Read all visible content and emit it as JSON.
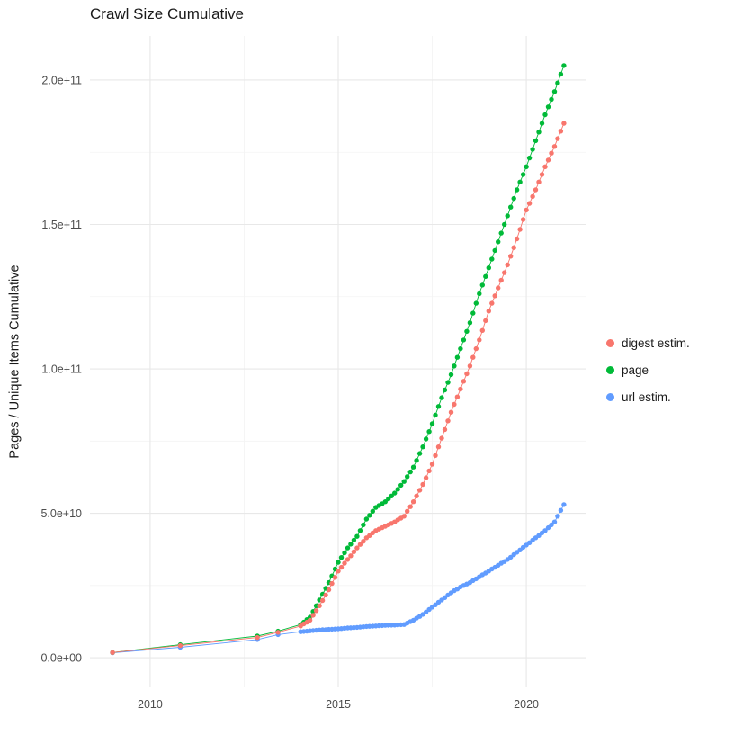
{
  "chart_data": {
    "type": "scatter",
    "title": "Crawl Size Cumulative",
    "xlabel": "",
    "ylabel": "Pages / Unique Items Cumulative",
    "grid": true,
    "legend_position": "right",
    "unit": 1000000000,
    "unit_note": "all series values are in billions (1e9) of pages/items",
    "xlim": [
      2009,
      2021
    ],
    "ylim": [
      0,
      205
    ],
    "x_ticks": {
      "values": [
        2010,
        2015,
        2020
      ],
      "labels": [
        "2010",
        "2015",
        "2020"
      ]
    },
    "x_minor": [
      2012.5,
      2017.5
    ],
    "y_ticks": {
      "values": [
        0,
        50,
        100,
        150,
        200
      ],
      "labels": [
        "0.0e+00",
        "5.0e+10",
        "1.0e+11",
        "1.5e+11",
        "2.0e+11"
      ]
    },
    "y_minor": [
      25,
      75,
      125,
      175
    ],
    "series": [
      {
        "name": "digest estim.",
        "color": "#F8766D",
        "early_points": [
          [
            2009.0,
            1.8
          ],
          [
            2010.8,
            4.2
          ],
          [
            2012.85,
            7.0
          ],
          [
            2013.4,
            8.8
          ]
        ],
        "monthly_start": 2014.0,
        "monthly_step_years": 0.0833333,
        "monthly_values": [
          11,
          11.7,
          12.3,
          13,
          14.7,
          16.3,
          18,
          19.8,
          21.7,
          23.5,
          25.7,
          27.8,
          30,
          31.3,
          32.7,
          34,
          35.3,
          36.7,
          38,
          39.2,
          40.3,
          41.5,
          42.3,
          43.2,
          44,
          44.5,
          45,
          45.5,
          46,
          46.5,
          47,
          47.7,
          48.3,
          49,
          50.7,
          52.3,
          54,
          56,
          58,
          60,
          62.3,
          64.7,
          67,
          70,
          73,
          76,
          79,
          82,
          85,
          87.7,
          90.3,
          93,
          95.7,
          98.3,
          101,
          104,
          107,
          110,
          113.3,
          116.7,
          120,
          122.7,
          125.3,
          128,
          130.7,
          133.3,
          136,
          139,
          142,
          145,
          148.3,
          151.7,
          155,
          157.3,
          159.7,
          162,
          164.7,
          167.3,
          170,
          172.3,
          174.7,
          177,
          179.7,
          182.3,
          185
        ]
      },
      {
        "name": "page",
        "color": "#00BA38",
        "early_points": [
          [
            2009.0,
            1.8
          ],
          [
            2010.8,
            4.5
          ],
          [
            2012.85,
            7.5
          ],
          [
            2013.4,
            9.2
          ]
        ],
        "monthly_start": 2014.0,
        "monthly_step_years": 0.0833333,
        "monthly_values": [
          11.5,
          12.3,
          13.2,
          14,
          16,
          18,
          20,
          22,
          24,
          26,
          28.3,
          30.7,
          33,
          34.7,
          36.3,
          38,
          39.3,
          40.7,
          42,
          44,
          46,
          48,
          49.3,
          50.7,
          52,
          52.7,
          53.3,
          54,
          55,
          56,
          57,
          58.3,
          59.7,
          61,
          62.7,
          64.3,
          66,
          68.3,
          70.7,
          73,
          75.7,
          78.3,
          81,
          84,
          87,
          90,
          92.7,
          95.3,
          98,
          101,
          104,
          107,
          110,
          113,
          116,
          119.3,
          122.7,
          126,
          129,
          132,
          135,
          138,
          141,
          144,
          147,
          150,
          153,
          156,
          159,
          162,
          164.7,
          167.3,
          170,
          173,
          176,
          179,
          182,
          185,
          188,
          190.7,
          193.3,
          196,
          199,
          202,
          205
        ]
      },
      {
        "name": "url estim.",
        "color": "#619CFF",
        "early_points": [
          [
            2009.0,
            1.7
          ],
          [
            2010.8,
            3.6
          ],
          [
            2012.85,
            6.3
          ],
          [
            2013.4,
            8.0
          ]
        ],
        "monthly_start": 2014.0,
        "monthly_step_years": 0.0833333,
        "monthly_values": [
          9,
          9.1,
          9.2,
          9.3,
          9.4,
          9.5,
          9.6,
          9.67,
          9.73,
          9.8,
          9.87,
          9.93,
          10,
          10.1,
          10.2,
          10.3,
          10.37,
          10.43,
          10.5,
          10.6,
          10.7,
          10.8,
          10.87,
          10.93,
          11,
          11.07,
          11.13,
          11.2,
          11.23,
          11.27,
          11.3,
          11.37,
          11.43,
          11.5,
          12,
          12.5,
          13,
          13.7,
          14.3,
          15,
          15.8,
          16.7,
          17.5,
          18.3,
          19.2,
          20,
          20.8,
          21.7,
          22.5,
          23.2,
          23.8,
          24.5,
          25,
          25.5,
          26,
          26.7,
          27.3,
          28,
          28.7,
          29.3,
          30,
          30.7,
          31.3,
          32,
          32.7,
          33.3,
          34,
          34.8,
          35.7,
          36.5,
          37.3,
          38.2,
          39,
          39.8,
          40.7,
          41.5,
          42.3,
          43.2,
          44,
          45,
          46,
          47,
          49,
          51,
          53
        ]
      }
    ]
  }
}
